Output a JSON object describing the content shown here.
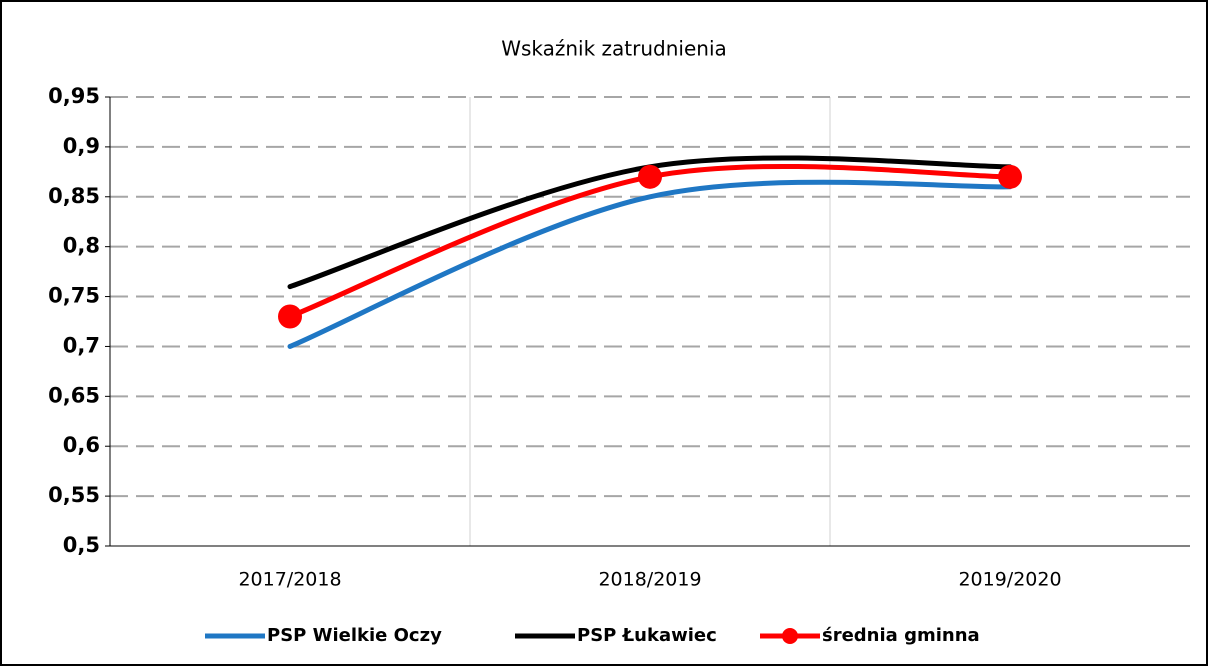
{
  "chart_data": {
    "type": "line",
    "title": "Wskaźnik zatrudnienia",
    "categories": [
      "2017/2018",
      "2018/2019",
      "2019/2020"
    ],
    "series": [
      {
        "name": "PSP Wielkie Oczy",
        "color": "#1f77c4",
        "values": [
          0.7,
          0.85,
          0.86
        ]
      },
      {
        "name": "PSP Łukawiec",
        "color": "#000000",
        "values": [
          0.76,
          0.88,
          0.88
        ]
      },
      {
        "name": "średnia gminna",
        "color": "#ff0000",
        "values": [
          0.73,
          0.87,
          0.87
        ],
        "markers": true
      }
    ],
    "ylim": [
      0.5,
      0.95
    ],
    "yticks": [
      {
        "value": 0.5,
        "label": "0,5"
      },
      {
        "value": 0.55,
        "label": "0,55"
      },
      {
        "value": 0.6,
        "label": "0,6"
      },
      {
        "value": 0.65,
        "label": "0,65"
      },
      {
        "value": 0.7,
        "label": "0,7"
      },
      {
        "value": 0.75,
        "label": "0,75"
      },
      {
        "value": 0.8,
        "label": "0,8"
      },
      {
        "value": 0.85,
        "label": "0,85"
      },
      {
        "value": 0.9,
        "label": "0,9"
      },
      {
        "value": 0.95,
        "label": "0,95"
      }
    ],
    "grid": true,
    "smooth": true,
    "legend": "bottom"
  }
}
